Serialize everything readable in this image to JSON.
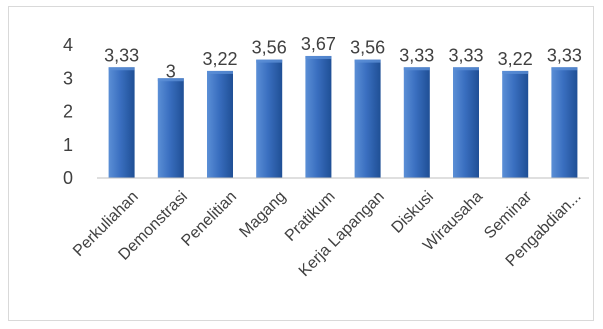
{
  "chart_data": {
    "type": "bar",
    "title": "",
    "xlabel": "",
    "ylabel": "",
    "categories": [
      "Perkuliahan",
      "Demonstrasi",
      "Penelitian",
      "Magang",
      "Pratikum",
      "Kerja Lapangan",
      "Diskusi",
      "Wirausaha",
      "Seminar",
      "Pengabdian..."
    ],
    "values": [
      3.33,
      3,
      3.22,
      3.56,
      3.67,
      3.56,
      3.33,
      3.33,
      3.22,
      3.33
    ],
    "data_labels": [
      "3,33",
      "3",
      "3,22",
      "3,56",
      "3,67",
      "3,56",
      "3,33",
      "3,33",
      "3,22",
      "3,33"
    ],
    "ylim": [
      0,
      4
    ],
    "yticks": [
      0,
      1,
      2,
      3,
      4
    ],
    "grid": false,
    "legend": "none",
    "colors": {
      "bar_light": "#5b8fd6",
      "bar_mid": "#3a6fc0",
      "bar_dark": "#1f4f95",
      "axis": "#bfbfbf",
      "text": "#404040"
    }
  }
}
